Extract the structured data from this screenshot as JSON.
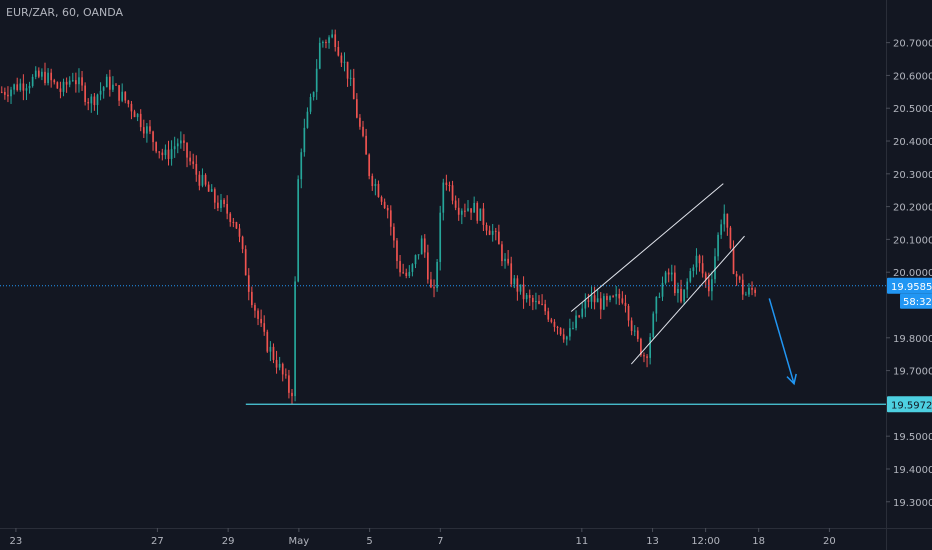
{
  "header": {
    "symbol": "EUR/ZAR, 60, OANDA"
  },
  "chart_data": {
    "type": "candlestick",
    "symbol": "EUR/ZAR",
    "interval": "60",
    "source": "OANDA",
    "y_ticks": [
      "20.70000",
      "20.60000",
      "20.50000",
      "20.40000",
      "20.30000",
      "20.20000",
      "20.10000",
      "20.00000",
      "19.80000",
      "19.70000",
      "19.50000",
      "19.40000",
      "19.30000"
    ],
    "y_tick_values": [
      20.7,
      20.6,
      20.5,
      20.4,
      20.3,
      20.2,
      20.1,
      20.0,
      19.8,
      19.7,
      19.5,
      19.4,
      19.3
    ],
    "x_ticks": [
      "23",
      "27",
      "29",
      "May",
      "5",
      "7",
      "11",
      "13",
      "12:00",
      "18",
      "20"
    ],
    "x_tick_times": [
      0,
      4,
      6,
      8,
      10,
      12,
      16,
      18,
      19.5,
      21,
      23
    ],
    "ylim": [
      19.22,
      20.83
    ],
    "xlim": [
      -0.45,
      24.6
    ],
    "current_price": {
      "label": "19.95858",
      "value": 19.95858
    },
    "countdown": "58:32",
    "support": {
      "label": "19.59725",
      "value": 19.59725,
      "from": 6.5
    },
    "grid": false,
    "anchors": [
      [
        -0.4,
        20.55
      ],
      [
        0.3,
        20.58
      ],
      [
        0.8,
        20.6
      ],
      [
        1.3,
        20.55
      ],
      [
        1.6,
        20.6
      ],
      [
        2.1,
        20.52
      ],
      [
        2.6,
        20.58
      ],
      [
        3.3,
        20.5
      ],
      [
        3.6,
        20.45
      ],
      [
        4.2,
        20.35
      ],
      [
        4.6,
        20.4
      ],
      [
        5.1,
        20.3
      ],
      [
        5.6,
        20.22
      ],
      [
        6.2,
        20.16
      ],
      [
        6.6,
        19.95
      ],
      [
        7.0,
        19.8
      ],
      [
        7.4,
        19.72
      ],
      [
        7.8,
        19.62
      ],
      [
        8.0,
        20.35
      ],
      [
        8.4,
        20.55
      ],
      [
        8.6,
        20.7
      ],
      [
        9.0,
        20.72
      ],
      [
        9.4,
        20.6
      ],
      [
        9.7,
        20.45
      ],
      [
        10.0,
        20.3
      ],
      [
        10.5,
        20.2
      ],
      [
        10.8,
        20.02
      ],
      [
        11.1,
        19.98
      ],
      [
        11.5,
        20.1
      ],
      [
        11.8,
        19.9
      ],
      [
        12.1,
        20.3
      ],
      [
        12.5,
        20.2
      ],
      [
        12.9,
        20.2
      ],
      [
        13.5,
        20.12
      ],
      [
        14.0,
        19.98
      ],
      [
        14.4,
        19.92
      ],
      [
        15.0,
        19.88
      ],
      [
        15.6,
        19.8
      ],
      [
        16.2,
        19.92
      ],
      [
        16.7,
        19.9
      ],
      [
        17.2,
        19.93
      ],
      [
        17.5,
        19.8
      ],
      [
        17.8,
        19.74
      ],
      [
        18.2,
        19.95
      ],
      [
        18.5,
        20.0
      ],
      [
        18.8,
        19.9
      ],
      [
        19.2,
        20.05
      ],
      [
        19.6,
        19.95
      ],
      [
        20.0,
        20.2
      ],
      [
        20.2,
        20.05
      ],
      [
        20.4,
        19.98
      ],
      [
        20.6,
        19.93
      ],
      [
        20.9,
        19.95
      ]
    ]
  }
}
